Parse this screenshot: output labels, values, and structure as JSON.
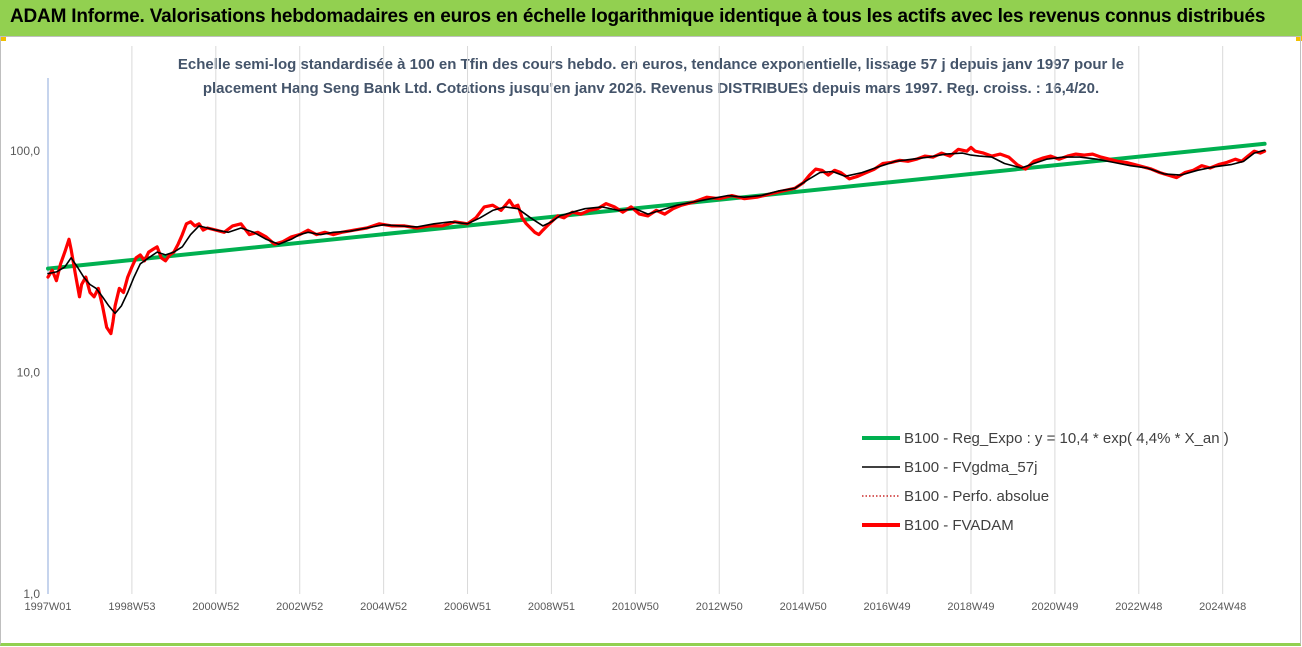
{
  "header": {
    "title": "ADAM Informe. Valorisations hebdomadaires en euros en échelle logarithmique identique à tous les actifs avec les revenus connus distribués"
  },
  "chart_data": {
    "type": "line",
    "title_lines": [
      "Echelle semi-log standardisée à 100 en Tfin des cours hebdo. en euros, tendance exponentielle, lissage 57 j depuis janv 1997 pour le",
      "placement Hang Seng Bank Ltd. Cotations jusqu'en janv 2026. Revenus DISTRIBUES depuis mars 1997. Reg. croiss. : 16,4/20."
    ],
    "y_scale": "log",
    "ylim": [
      1,
      160
    ],
    "y_ticks": [
      "1,0",
      "10,0",
      "100,0"
    ],
    "y_tick_values": [
      1,
      10,
      100
    ],
    "xlim": [
      1997.0,
      2026.08
    ],
    "x_tick_labels": [
      "1997W01",
      "1998W53",
      "2000W52",
      "2002W52",
      "2004W52",
      "2006W51",
      "2008W51",
      "2010W50",
      "2012W50",
      "2014W50",
      "2016W49",
      "2018W49",
      "2020W49",
      "2022W48",
      "2024W48"
    ],
    "x_tick_values": [
      1997.0,
      1999.0,
      2001.0,
      2003.0,
      2005.0,
      2007.0,
      2009.0,
      2011.0,
      2013.0,
      2015.0,
      2017.0,
      2019.0,
      2021.0,
      2023.0,
      2025.0
    ],
    "grid": {
      "vertical": true,
      "horizontal": false
    },
    "legend_position": "bottom-right",
    "series": [
      {
        "name": "B100 - Reg_Expo : y = 10,4 * exp( 4,4% *  X_an )",
        "color": "#00b050",
        "style": "solid-thick",
        "x": [
          1997.0,
          2026.0
        ],
        "y": [
          29.5,
          108.0
        ]
      },
      {
        "name": "B100 - FVgdma_57j",
        "color": "#000000",
        "style": "solid-thin",
        "x": [
          1997.0,
          1997.2,
          1997.4,
          1997.55,
          1997.7,
          1997.85,
          1998.0,
          1998.15,
          1998.3,
          1998.45,
          1998.6,
          1998.75,
          1998.9,
          1999.05,
          1999.2,
          1999.4,
          1999.6,
          1999.8,
          2000.0,
          2000.2,
          2000.4,
          2000.6,
          2000.8,
          2001.0,
          2001.3,
          2001.6,
          2001.9,
          2002.2,
          2002.5,
          2002.8,
          2003.0,
          2003.2,
          2003.5,
          2003.8,
          2004.2,
          2004.6,
          2005.0,
          2005.4,
          2005.8,
          2006.2,
          2006.6,
          2007.0,
          2007.3,
          2007.6,
          2007.9,
          2008.2,
          2008.5,
          2008.8,
          2009.0,
          2009.2,
          2009.5,
          2009.8,
          2010.2,
          2010.6,
          2011.0,
          2011.3,
          2011.6,
          2012.0,
          2012.4,
          2012.8,
          2013.2,
          2013.6,
          2014.0,
          2014.4,
          2014.8,
          2015.1,
          2015.4,
          2015.7,
          2016.0,
          2016.4,
          2016.8,
          2017.2,
          2017.6,
          2018.0,
          2018.4,
          2018.8,
          2019.0,
          2019.2,
          2019.5,
          2019.8,
          2020.2,
          2020.5,
          2020.8,
          2021.2,
          2021.6,
          2022.0,
          2022.4,
          2022.8,
          2023.2,
          2023.6,
          2024.0,
          2024.4,
          2024.8,
          2025.2,
          2025.5,
          2025.75,
          2026.0
        ],
        "y": [
          28,
          28.5,
          30,
          33,
          30,
          27,
          25,
          24,
          22,
          20,
          18.5,
          20,
          23,
          27,
          31,
          33,
          35,
          34,
          35,
          37,
          42,
          46,
          45,
          44,
          43,
          45,
          43,
          40,
          38,
          40,
          42,
          43,
          42,
          43,
          43.5,
          45,
          46.5,
          46,
          45.5,
          47,
          48,
          47,
          50,
          54,
          56,
          55,
          50,
          46,
          48,
          51,
          53,
          55,
          56,
          54,
          55,
          52,
          54,
          57,
          59,
          61,
          63,
          62,
          63,
          66,
          68,
          74,
          80,
          81,
          77,
          80,
          85,
          90,
          92,
          94,
          97,
          98,
          96,
          95,
          94,
          88,
          84,
          88,
          92,
          94,
          94,
          92,
          89,
          86,
          84,
          79,
          78,
          82,
          85,
          87,
          90,
          98,
          101
        ]
      },
      {
        "name": "B100 - Perfo. absolue",
        "color": "#c00000",
        "style": "dotted",
        "x": [],
        "y": []
      },
      {
        "name": "B100 - FVADAM",
        "color": "#ff0000",
        "style": "solid-thick",
        "x": [
          1997.0,
          1997.1,
          1997.2,
          1997.3,
          1997.4,
          1997.5,
          1997.55,
          1997.65,
          1997.75,
          1997.8,
          1997.9,
          1998.0,
          1998.1,
          1998.2,
          1998.3,
          1998.4,
          1998.5,
          1998.55,
          1998.6,
          1998.7,
          1998.8,
          1998.9,
          1999.0,
          1999.1,
          1999.2,
          1999.3,
          1999.4,
          1999.5,
          1999.6,
          1999.7,
          1999.8,
          1999.9,
          2000.0,
          2000.1,
          2000.2,
          2000.3,
          2000.4,
          2000.5,
          2000.6,
          2000.7,
          2000.8,
          2001.0,
          2001.2,
          2001.4,
          2001.6,
          2001.8,
          2002.0,
          2002.2,
          2002.4,
          2002.6,
          2002.8,
          2003.0,
          2003.2,
          2003.4,
          2003.6,
          2003.8,
          2004.0,
          2004.3,
          2004.6,
          2004.9,
          2005.2,
          2005.5,
          2005.8,
          2006.1,
          2006.4,
          2006.7,
          2007.0,
          2007.2,
          2007.4,
          2007.6,
          2007.8,
          2008.0,
          2008.1,
          2008.2,
          2008.3,
          2008.4,
          2008.5,
          2008.6,
          2008.7,
          2008.8,
          2008.9,
          2009.0,
          2009.15,
          2009.3,
          2009.5,
          2009.7,
          2009.9,
          2010.1,
          2010.3,
          2010.5,
          2010.7,
          2010.9,
          2011.1,
          2011.3,
          2011.5,
          2011.7,
          2011.9,
          2012.1,
          2012.4,
          2012.7,
          2013.0,
          2013.3,
          2013.6,
          2013.9,
          2014.2,
          2014.5,
          2014.8,
          2015.0,
          2015.15,
          2015.3,
          2015.45,
          2015.6,
          2015.75,
          2015.9,
          2016.1,
          2016.3,
          2016.5,
          2016.7,
          2016.9,
          2017.1,
          2017.3,
          2017.5,
          2017.7,
          2017.9,
          2018.1,
          2018.3,
          2018.5,
          2018.7,
          2018.9,
          2019.0,
          2019.1,
          2019.3,
          2019.5,
          2019.7,
          2019.9,
          2020.1,
          2020.3,
          2020.5,
          2020.7,
          2020.9,
          2021.1,
          2021.3,
          2021.5,
          2021.7,
          2021.9,
          2022.1,
          2022.3,
          2022.5,
          2022.7,
          2022.9,
          2023.1,
          2023.3,
          2023.5,
          2023.7,
          2023.9,
          2024.1,
          2024.3,
          2024.5,
          2024.7,
          2024.9,
          2025.1,
          2025.3,
          2025.45,
          2025.6,
          2025.75,
          2025.9,
          2026.0
        ],
        "y": [
          27,
          29,
          26,
          31,
          35,
          40,
          36,
          28,
          22,
          25,
          27,
          23,
          22,
          24,
          20,
          16,
          15,
          17,
          20,
          24,
          23,
          27,
          30,
          33,
          34,
          32,
          35,
          36,
          37,
          33,
          32,
          34,
          35,
          38,
          42,
          47,
          48,
          46,
          47,
          44,
          45,
          44,
          43,
          46,
          47,
          42,
          43,
          41,
          38,
          39,
          41,
          42,
          44,
          42,
          43,
          42,
          43,
          44,
          45,
          47,
          46,
          46,
          45,
          46,
          46,
          48,
          47,
          50,
          56,
          57,
          54,
          60,
          56,
          57,
          50,
          47,
          45,
          43,
          42,
          44,
          46,
          48,
          51,
          50,
          53,
          52,
          54,
          55,
          58,
          56,
          53,
          56,
          52,
          51,
          54,
          52,
          55,
          57,
          59,
          62,
          61,
          63,
          61,
          62,
          64,
          66,
          68,
          72,
          78,
          83,
          82,
          78,
          82,
          80,
          75,
          77,
          80,
          83,
          88,
          89,
          91,
          90,
          92,
          95,
          94,
          98,
          95,
          102,
          100,
          104,
          100,
          98,
          95,
          97,
          94,
          87,
          83,
          90,
          93,
          95,
          92,
          95,
          97,
          96,
          97,
          94,
          92,
          90,
          89,
          87,
          85,
          83,
          80,
          78,
          76,
          80,
          82,
          86,
          84,
          87,
          89,
          92,
          90,
          95,
          100,
          98,
          100
        ]
      }
    ]
  }
}
